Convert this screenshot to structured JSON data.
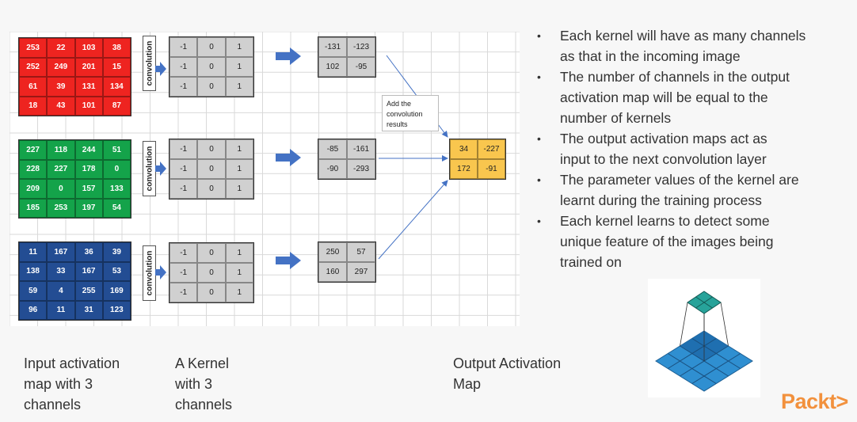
{
  "input_channels": [
    {
      "color": "red",
      "values": [
        [
          "253",
          "22",
          "103",
          "38"
        ],
        [
          "252",
          "249",
          "201",
          "15"
        ],
        [
          "61",
          "39",
          "131",
          "134"
        ],
        [
          "18",
          "43",
          "101",
          "87"
        ]
      ]
    },
    {
      "color": "green",
      "values": [
        [
          "227",
          "118",
          "244",
          "51"
        ],
        [
          "228",
          "227",
          "178",
          "0"
        ],
        [
          "209",
          "0",
          "157",
          "133"
        ],
        [
          "185",
          "253",
          "197",
          "54"
        ]
      ]
    },
    {
      "color": "blue",
      "values": [
        [
          "11",
          "167",
          "36",
          "39"
        ],
        [
          "138",
          "33",
          "167",
          "53"
        ],
        [
          "59",
          "4",
          "255",
          "169"
        ],
        [
          "96",
          "11",
          "31",
          "123"
        ]
      ]
    }
  ],
  "kernel_label": "convolution",
  "kernel_values": [
    [
      "-1",
      "0",
      "1"
    ],
    [
      "-1",
      "0",
      "1"
    ],
    [
      "-1",
      "0",
      "1"
    ]
  ],
  "channel_outputs": [
    [
      [
        "-131",
        "-123"
      ],
      [
        "102",
        "-95"
      ]
    ],
    [
      [
        "-85",
        "-161"
      ],
      [
        "-90",
        "-293"
      ]
    ],
    [
      [
        "250",
        "57"
      ],
      [
        "160",
        "297"
      ]
    ]
  ],
  "sum_callout": {
    "line1": "Add the",
    "line2": "convolution",
    "line3": "results"
  },
  "final_output": [
    [
      "34",
      "-227"
    ],
    [
      "172",
      "-91"
    ]
  ],
  "captions": {
    "input": [
      "Input activation",
      "map with 3",
      "channels"
    ],
    "kernel": [
      "A Kernel",
      "with 3",
      "channels"
    ],
    "output": [
      "Output Activation",
      "Map"
    ]
  },
  "bullets": [
    [
      "Each kernel will have as many channels",
      "as that in the incoming image"
    ],
    [
      "The number of channels in the output",
      "activation map will be equal to the",
      "number of kernels"
    ],
    [
      "The output activation maps act as",
      "input to the next convolution layer"
    ],
    [
      "The parameter values of the kernel are",
      "learnt during the training process"
    ],
    [
      "Each kernel learns to detect some",
      "unique feature of the images being",
      "trained on"
    ]
  ],
  "logo": "Packt>",
  "colors": {
    "red_channel": "#ee2420",
    "green_channel": "#14a34a",
    "blue_channel": "#234d93",
    "kernel_cell": "#d0d0d0",
    "final_cell": "#f9c64e",
    "arrow": "#4472c4",
    "logo": "#f2913d"
  },
  "icons": [
    "right-arrow-icon",
    "convolution-pyramid-icon",
    "bullet-dot-icon"
  ]
}
